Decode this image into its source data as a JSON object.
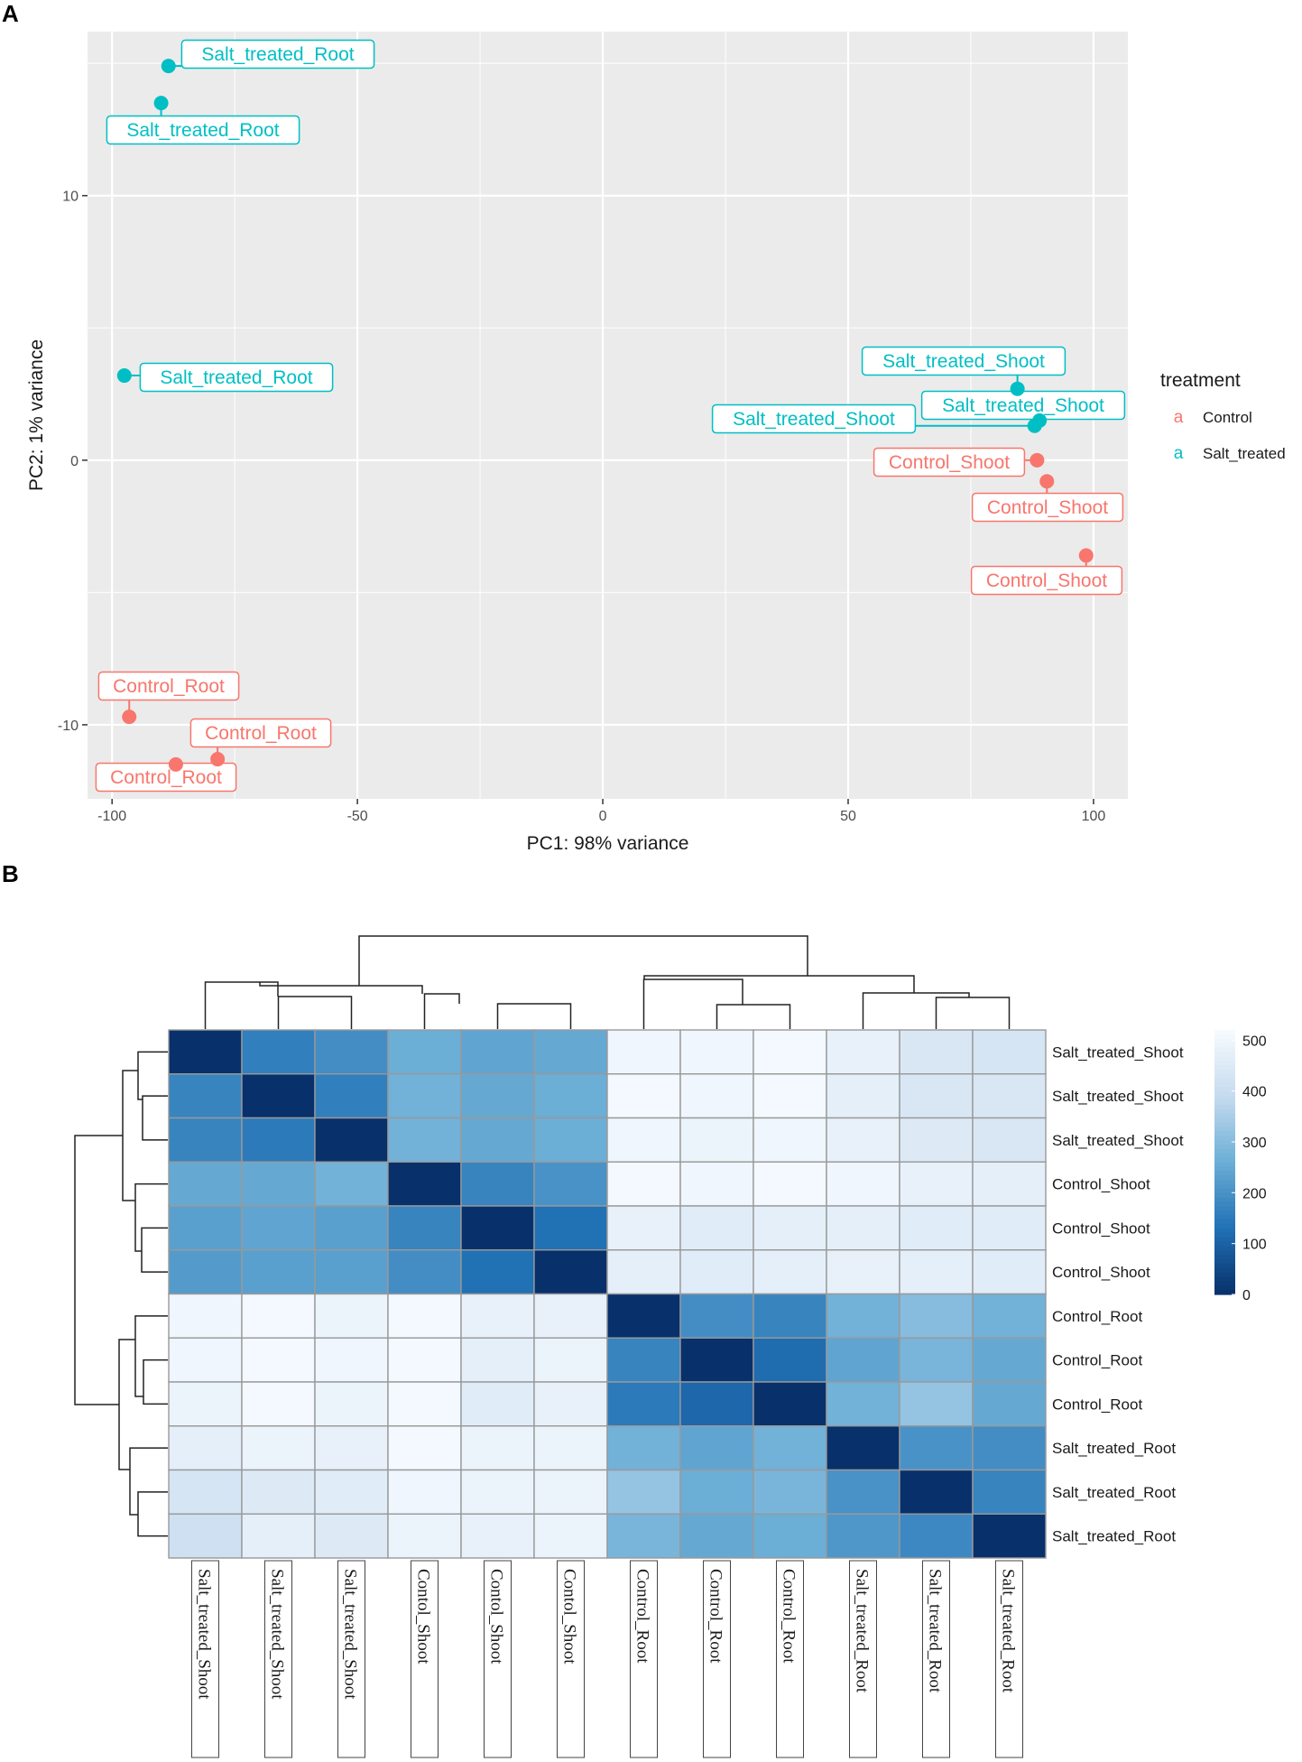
{
  "panels": {
    "a": "A",
    "b": "B"
  },
  "colors": {
    "control": "#F8766D",
    "salt_treated": "#00BFC4",
    "panel_bg": "#EBEBEB",
    "grid": "#FFFFFF"
  },
  "chart_data": [
    {
      "type": "scatter",
      "title": "",
      "xlabel": "PC1: 98% variance",
      "ylabel": "PC2: 1% variance",
      "xlim": [
        -105,
        107
      ],
      "ylim": [
        -12.8,
        16.2
      ],
      "xticks": [
        -100,
        -50,
        0,
        50,
        100
      ],
      "xtick_labels": [
        "-100",
        "-50",
        "0",
        "50",
        "100"
      ],
      "yticks": [
        -10,
        0,
        10
      ],
      "ytick_labels": [
        "-10",
        "0",
        "10"
      ],
      "legend": {
        "title": "treatment",
        "key_glyph": "a",
        "position": "right",
        "entries": [
          "Control",
          "Salt_treated"
        ]
      },
      "series": [
        {
          "name": "Control",
          "points": [
            {
              "x": -96.5,
              "y": -9.7,
              "label": "Control_Root"
            },
            {
              "x": -87.0,
              "y": -11.5,
              "label": "Control_Root"
            },
            {
              "x": -78.5,
              "y": -11.3,
              "label": "Control_Root"
            },
            {
              "x": 88.5,
              "y": 0.0,
              "label": "Control_Shoot"
            },
            {
              "x": 90.5,
              "y": -0.8,
              "label": "Control_Shoot"
            },
            {
              "x": 98.5,
              "y": -3.6,
              "label": "Control_Shoot"
            }
          ]
        },
        {
          "name": "Salt_treated",
          "points": [
            {
              "x": -88.5,
              "y": 14.9,
              "label": "Salt_treated_Root"
            },
            {
              "x": -90.0,
              "y": 13.5,
              "label": "Salt_treated_Root"
            },
            {
              "x": -97.5,
              "y": 3.2,
              "label": "Salt_treated_Root"
            },
            {
              "x": 84.5,
              "y": 2.7,
              "label": "Salt_treated_Shoot"
            },
            {
              "x": 89.0,
              "y": 1.5,
              "label": "Salt_treated_Shoot"
            },
            {
              "x": 88.0,
              "y": 1.3,
              "label": "Salt_treated_Shoot"
            }
          ]
        }
      ]
    },
    {
      "type": "heatmap",
      "title": "",
      "row_labels": [
        "Salt_treated_Shoot",
        "Salt_treated_Shoot",
        "Salt_treated_Shoot",
        "Control_Shoot",
        "Control_Shoot",
        "Control_Shoot",
        "Control_Root",
        "Control_Root",
        "Control_Root",
        "Salt_treated_Root",
        "Salt_treated_Root",
        "Salt_treated_Root"
      ],
      "col_labels": [
        "Salt_treated_Shoot",
        "Salt_treated_Shoot",
        "Salt_treated_Shoot",
        "Contol_Shoot",
        "Contol_Shoot",
        "Contol_Shoot",
        "Control_Root",
        "Control_Root",
        "Control_Root",
        "Salt_treated_Root",
        "Salt_treated_Root",
        "Salt_treated_Root"
      ],
      "values": [
        [
          0,
          160,
          190,
          260,
          240,
          250,
          500,
          500,
          510,
          480,
          440,
          430
        ],
        [
          170,
          0,
          160,
          270,
          250,
          260,
          510,
          500,
          510,
          470,
          440,
          440
        ],
        [
          170,
          150,
          0,
          270,
          250,
          260,
          500,
          490,
          500,
          480,
          450,
          440
        ],
        [
          250,
          250,
          270,
          0,
          170,
          200,
          510,
          500,
          510,
          500,
          480,
          470
        ],
        [
          230,
          240,
          230,
          170,
          0,
          130,
          480,
          460,
          470,
          470,
          460,
          460
        ],
        [
          220,
          230,
          230,
          190,
          130,
          0,
          470,
          460,
          470,
          480,
          470,
          460
        ],
        [
          500,
          510,
          490,
          510,
          480,
          480,
          0,
          190,
          170,
          270,
          300,
          270
        ],
        [
          500,
          510,
          500,
          510,
          470,
          490,
          170,
          0,
          120,
          240,
          280,
          250
        ],
        [
          490,
          510,
          490,
          510,
          460,
          480,
          150,
          110,
          0,
          270,
          320,
          250
        ],
        [
          470,
          490,
          480,
          510,
          490,
          490,
          270,
          240,
          270,
          0,
          200,
          190
        ],
        [
          430,
          450,
          460,
          500,
          490,
          490,
          320,
          260,
          280,
          200,
          0,
          170
        ],
        [
          410,
          470,
          450,
          490,
          480,
          490,
          280,
          250,
          260,
          210,
          180,
          0
        ]
      ],
      "color_scale": {
        "min": 0,
        "max": 520,
        "colors": [
          "#08306B",
          "#2171B5",
          "#6BAED6",
          "#C6DBEF",
          "#F7FBFF"
        ]
      },
      "colorbar_ticks": [
        0,
        100,
        200,
        300,
        400,
        500
      ],
      "colorbar_tick_labels": [
        "0",
        "100",
        "200",
        "300",
        "400",
        "500"
      ]
    }
  ]
}
